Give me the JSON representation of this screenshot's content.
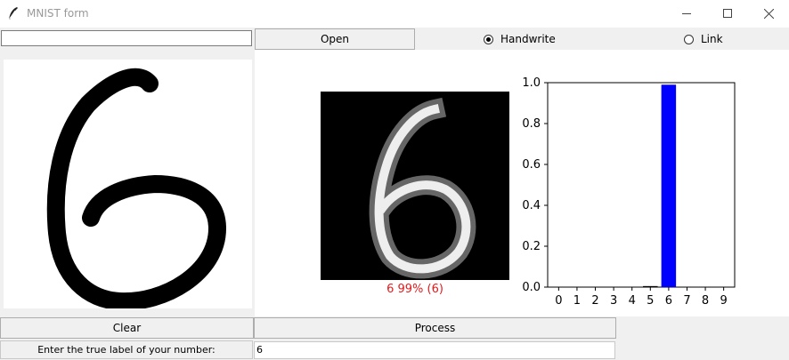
{
  "window": {
    "title": "MNIST form",
    "icons": {
      "app": "feather-icon",
      "minimize": "minimize-icon",
      "maximize": "maximize-icon",
      "close": "close-icon"
    }
  },
  "toolbar": {
    "path_value": "",
    "open_label": "Open",
    "mode_options": [
      {
        "label": "Handwrite",
        "selected": true
      },
      {
        "label": "Link",
        "selected": false
      }
    ]
  },
  "preview": {
    "prediction_text": "6 99% (6)",
    "prediction_color": "#e41a1c"
  },
  "chart_data": {
    "type": "bar",
    "categories": [
      "0",
      "1",
      "2",
      "3",
      "4",
      "5",
      "6",
      "7",
      "8",
      "9"
    ],
    "values": [
      0,
      0,
      0,
      0,
      0,
      0.005,
      0.99,
      0,
      0,
      0
    ],
    "bar_colors": [
      "#000000",
      "#000000",
      "#000000",
      "#000000",
      "#000000",
      "#000000",
      "#0000ff",
      "#000000",
      "#000000",
      "#000000"
    ],
    "ylim": [
      0,
      1.0
    ],
    "yticks": [
      "0.0",
      "0.2",
      "0.4",
      "0.6",
      "0.8",
      "1.0"
    ],
    "title": "",
    "xlabel": "",
    "ylabel": ""
  },
  "actions": {
    "clear_label": "Clear",
    "process_label": "Process"
  },
  "true_label": {
    "prompt": "Enter the true label of your number:",
    "value": "6"
  }
}
